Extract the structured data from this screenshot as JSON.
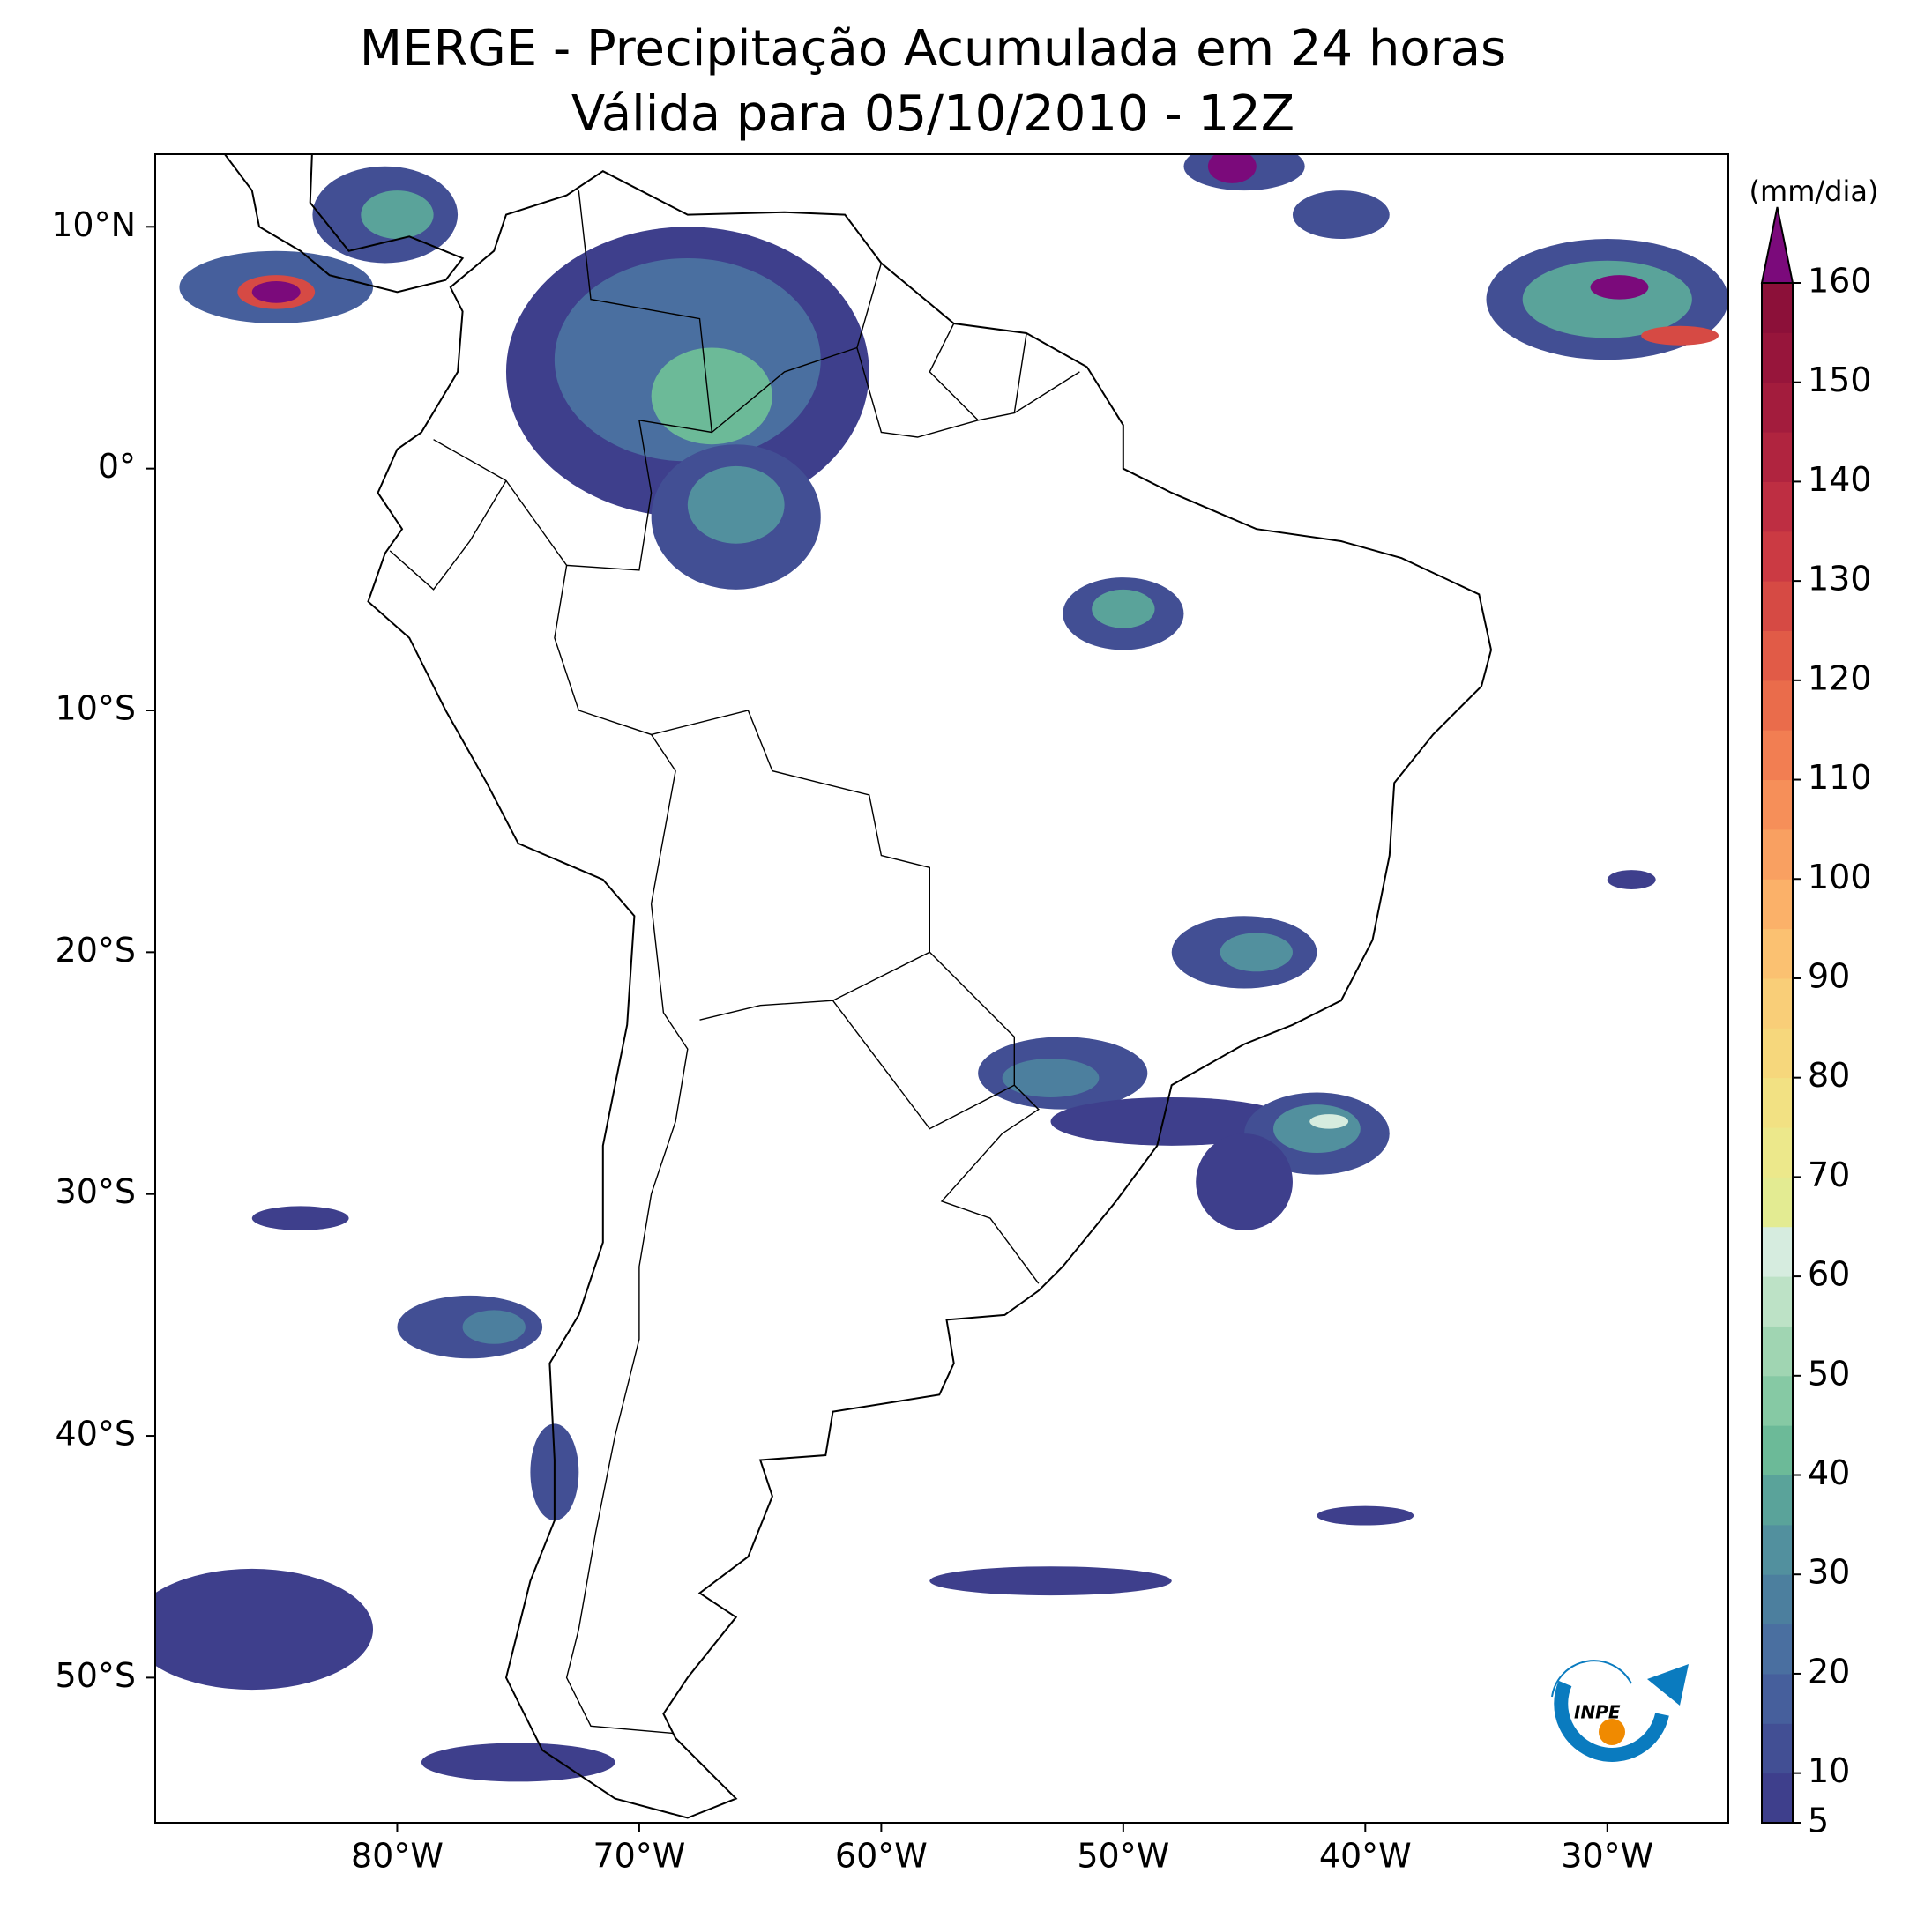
{
  "header": {
    "title": "MERGE - Precipitação Acumulada em 24 horas",
    "subtitle": "Válida para 05/10/2010 - 12Z"
  },
  "map": {
    "xlim": [
      -90,
      -25
    ],
    "ylim": [
      -56,
      13
    ],
    "xticks": [
      {
        "value": -80,
        "label": "80°W"
      },
      {
        "value": -70,
        "label": "70°W"
      },
      {
        "value": -60,
        "label": "60°W"
      },
      {
        "value": -50,
        "label": "50°W"
      },
      {
        "value": -40,
        "label": "40°W"
      },
      {
        "value": -30,
        "label": "30°W"
      }
    ],
    "yticks": [
      {
        "value": 10,
        "label": "10°N"
      },
      {
        "value": 0,
        "label": "0°"
      },
      {
        "value": -10,
        "label": "10°S"
      },
      {
        "value": -20,
        "label": "20°S"
      },
      {
        "value": -30,
        "label": "30°S"
      },
      {
        "value": -40,
        "label": "40°S"
      },
      {
        "value": -50,
        "label": "50°S"
      }
    ]
  },
  "colorbar": {
    "label": "(mm/dia)",
    "clim": [
      5,
      160
    ],
    "ticks": [
      5,
      10,
      20,
      30,
      40,
      50,
      60,
      70,
      80,
      90,
      100,
      110,
      120,
      130,
      140,
      150,
      160
    ],
    "colors": [
      "#3e3f8c",
      "#424f94",
      "#465f9c",
      "#4a6fa0",
      "#4c7f9e",
      "#52909e",
      "#5aa39a",
      "#6cba98",
      "#86c9a4",
      "#a0d5b2",
      "#bde2c6",
      "#d6ecdf",
      "#e3eb92",
      "#ece88b",
      "#f2e183",
      "#f6d77c",
      "#f9ce78",
      "#fbc171",
      "#fbb169",
      "#f9a061",
      "#f68f59",
      "#f27e52",
      "#ea6c4b",
      "#e15b47",
      "#d64a44",
      "#cb3a43",
      "#be2e42",
      "#b0243f",
      "#a31c3d",
      "#97153b",
      "#8c1039"
    ],
    "extend_color": "#7b0a7b"
  },
  "logo": {
    "text": "INPE"
  }
}
